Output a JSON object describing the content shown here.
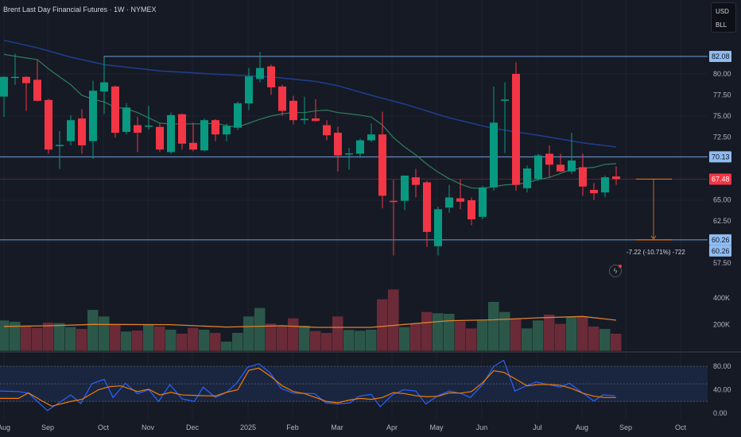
{
  "header": {
    "title": "Brent Last Day Financial Futures · 1W · NYMEX",
    "currency": "USD",
    "unit": "BLL"
  },
  "measure_label": "-7.22 (-10.71%) -722",
  "colors": {
    "up": "#089981",
    "down": "#f23645",
    "vol_up": "#2b5749",
    "vol_down": "#6b2a38",
    "ma_fast": "#2f7d5c",
    "ma_slow": "#1f3f8f",
    "vol_ma": "#e0822b",
    "rsi": "#2962ff",
    "rsi_ma": "#f57c00",
    "level": "#6f9fd8",
    "tag_blue": "#8fbcf0",
    "tag_red": "#f23645"
  },
  "chart_data": [
    {
      "type": "candlestick",
      "title": "Brent Last Day Financial Futures · 1W · NYMEX",
      "ylim": [
        57.5,
        82.5
      ],
      "price_ticks": [
        "80.00",
        "77.50",
        "75.00",
        "72.50",
        "65.00",
        "62.50",
        "57.50"
      ],
      "price_tick_values": [
        80,
        77.5,
        75,
        72.5,
        65,
        62.5,
        57.5
      ],
      "ohlc": [
        [
          77.3,
          79.7,
          74.9,
          79.65
        ],
        [
          79.55,
          82.4,
          78.7,
          79.65
        ],
        [
          79.65,
          79.7,
          75.6,
          78.9
        ],
        [
          79.3,
          81.6,
          76.7,
          76.8
        ],
        [
          76.9,
          77.0,
          70.5,
          71.0
        ],
        [
          71.45,
          73.2,
          68.7,
          71.55
        ],
        [
          72.0,
          75.1,
          71.5,
          74.5
        ],
        [
          74.7,
          75.8,
          70.5,
          71.5
        ],
        [
          72.0,
          79.2,
          69.9,
          78.0
        ],
        [
          77.9,
          81.9,
          75.2,
          79.0
        ],
        [
          78.5,
          78.6,
          72.4,
          73.0
        ],
        [
          73.1,
          76.5,
          72.8,
          76.0
        ],
        [
          73.9,
          74.9,
          70.7,
          73.0
        ],
        [
          73.75,
          76.2,
          73.4,
          73.85
        ],
        [
          73.7,
          74.1,
          70.7,
          71.0
        ],
        [
          70.7,
          75.4,
          70.5,
          75.1
        ],
        [
          75.2,
          75.3,
          71.0,
          71.7
        ],
        [
          71.8,
          74.2,
          70.8,
          71.0
        ],
        [
          70.9,
          74.7,
          70.8,
          74.5
        ],
        [
          74.5,
          74.6,
          72.0,
          72.8
        ],
        [
          72.8,
          74.1,
          72.0,
          73.8
        ],
        [
          73.6,
          76.7,
          73.3,
          76.5
        ],
        [
          76.5,
          80.7,
          75.7,
          79.7
        ],
        [
          79.4,
          82.6,
          79.0,
          80.7
        ],
        [
          80.9,
          81.1,
          77.5,
          78.4
        ],
        [
          78.5,
          78.7,
          75.0,
          75.6
        ],
        [
          76.8,
          77.4,
          74.0,
          74.5
        ],
        [
          74.5,
          77.3,
          74.0,
          74.65
        ],
        [
          74.7,
          77.0,
          74.3,
          74.4
        ],
        [
          73.9,
          74.5,
          72.1,
          72.7
        ],
        [
          73.0,
          73.7,
          68.4,
          70.3
        ],
        [
          70.45,
          71.2,
          68.6,
          70.55
        ],
        [
          70.5,
          72.3,
          70.0,
          72.1
        ],
        [
          72.1,
          74.1,
          71.9,
          72.8
        ],
        [
          72.8,
          75.5,
          64.0,
          65.5
        ],
        [
          64.9,
          67.4,
          58.4,
          64.8
        ],
        [
          64.9,
          67.9,
          63.8,
          67.9
        ],
        [
          67.7,
          68.7,
          65.3,
          66.8
        ],
        [
          67.1,
          67.3,
          59.4,
          61.2
        ],
        [
          59.5,
          64.2,
          58.4,
          63.9
        ],
        [
          64.1,
          66.8,
          63.5,
          65.3
        ],
        [
          65.2,
          67.5,
          63.9,
          64.8
        ],
        [
          64.97,
          65.3,
          62.0,
          62.7
        ],
        [
          63.0,
          66.7,
          62.7,
          66.5
        ],
        [
          66.5,
          78.5,
          66.1,
          74.2
        ],
        [
          76.8,
          79.0,
          70.6,
          76.95
        ],
        [
          80.0,
          81.4,
          66.1,
          66.8
        ],
        [
          66.4,
          69.1,
          65.9,
          68.75
        ],
        [
          67.5,
          70.5,
          67.3,
          70.3
        ],
        [
          70.5,
          71.5,
          67.7,
          69.2
        ],
        [
          69.2,
          70.5,
          68.3,
          68.4
        ],
        [
          68.4,
          73.0,
          68.1,
          69.7
        ],
        [
          68.9,
          70.5,
          65.5,
          66.6
        ],
        [
          66.2,
          67.0,
          65.0,
          65.8
        ],
        [
          65.9,
          67.9,
          65.3,
          67.7
        ],
        [
          67.8,
          69.0,
          66.8,
          67.48
        ]
      ],
      "ma_fast": [
        82.33,
        82.1,
        81.9,
        81.7,
        80.6,
        79.65,
        78.71,
        77.45,
        76.98,
        76.66,
        76.03,
        75.87,
        75.4,
        74.77,
        74.14,
        74.05,
        74.05,
        74.05,
        74.05,
        74.14,
        73.83,
        73.67,
        74.14,
        74.61,
        74.99,
        75.25,
        75.4,
        75.4,
        75.6,
        75.7,
        75.4,
        75.25,
        75.09,
        74.87,
        73.92,
        72.41,
        71.3,
        70.36,
        69.25,
        68.31,
        67.53,
        66.9,
        66.43,
        66.36,
        66.58,
        66.8,
        66.86,
        67.05,
        67.43,
        67.68,
        68.16,
        68.63,
        68.78,
        68.88,
        69.23,
        69.32
      ],
      "ma_slow_points": [
        [
          0,
          84.0
        ],
        [
          3,
          83.1
        ],
        [
          6,
          82.0
        ],
        [
          9,
          81.1
        ],
        [
          14,
          80.35
        ],
        [
          19,
          79.97
        ],
        [
          24,
          79.65
        ],
        [
          28,
          79.1
        ],
        [
          30,
          78.6
        ],
        [
          33,
          77.45
        ],
        [
          36,
          76.4
        ],
        [
          40,
          74.77
        ],
        [
          44,
          73.5
        ],
        [
          48,
          72.7
        ],
        [
          52,
          71.8
        ],
        [
          55,
          71.3
        ]
      ],
      "levels": [
        {
          "value": 82.08,
          "label": "82.08",
          "from_index": 9
        },
        {
          "value": 70.13,
          "label": "70.13",
          "from_index": -1
        },
        {
          "value": 60.26,
          "label": "60.26",
          "from_index": -1
        }
      ],
      "last_price": {
        "value": 67.48,
        "label": "67.48"
      },
      "measure": {
        "from": 67.48,
        "to": 60.26,
        "label": "60.26"
      }
    },
    {
      "type": "bar",
      "title": "Volume",
      "ylim": [
        0,
        480000
      ],
      "ticks": [
        "400K",
        "200K"
      ],
      "tick_values": [
        400000,
        200000
      ],
      "values": [
        230000,
        220000,
        190000,
        174000,
        214000,
        210000,
        180000,
        166000,
        310000,
        260000,
        200000,
        146000,
        154000,
        200000,
        184000,
        160000,
        130000,
        174000,
        160000,
        136000,
        70000,
        136000,
        260000,
        324000,
        206000,
        194000,
        246000,
        190000,
        150000,
        136000,
        260000,
        158000,
        152000,
        160000,
        390000,
        464000,
        180000,
        206000,
        294000,
        284000,
        280000,
        224000,
        170000,
        230000,
        370000,
        294000,
        246000,
        170000,
        230000,
        274000,
        204000,
        254000,
        256000,
        184000,
        166000,
        130000
      ],
      "ma_points": [
        [
          0,
          185000
        ],
        [
          4,
          190000
        ],
        [
          8,
          200000
        ],
        [
          15,
          198000
        ],
        [
          20,
          180000
        ],
        [
          25,
          190000
        ],
        [
          28,
          178000
        ],
        [
          33,
          178000
        ],
        [
          36,
          200000
        ],
        [
          40,
          228000
        ],
        [
          44,
          235000
        ],
        [
          48,
          250000
        ],
        [
          52,
          260000
        ],
        [
          55,
          232000
        ]
      ]
    },
    {
      "type": "line",
      "title": "RSI",
      "ylim": [
        -5,
        100
      ],
      "ticks": [
        "80.00",
        "40.00",
        "0.00"
      ],
      "tick_values": [
        80,
        40,
        0
      ],
      "band": [
        20,
        80
      ],
      "rsi_points": [
        [
          -0.4,
          37.8
        ],
        [
          1.3,
          36.9
        ],
        [
          2.2,
          34.2
        ],
        [
          3.9,
          4.4
        ],
        [
          6.0,
          31.1
        ],
        [
          6.9,
          16.4
        ],
        [
          7.9,
          50.2
        ],
        [
          9.0,
          57.8
        ],
        [
          9.8,
          26.7
        ],
        [
          10.9,
          51.1
        ],
        [
          12.0,
          33.3
        ],
        [
          13.0,
          40
        ],
        [
          13.9,
          20
        ],
        [
          14.9,
          48.9
        ],
        [
          16.0,
          24.4
        ],
        [
          17.1,
          20
        ],
        [
          17.9,
          44.4
        ],
        [
          19.0,
          26.7
        ],
        [
          20.0,
          35.6
        ],
        [
          20.9,
          51.1
        ],
        [
          21.9,
          78.7
        ],
        [
          22.9,
          84.4
        ],
        [
          23.9,
          68.9
        ],
        [
          24.9,
          42.2
        ],
        [
          26.0,
          34.2
        ],
        [
          27.9,
          33.3
        ],
        [
          28.9,
          17.8
        ],
        [
          30.0,
          15.6
        ],
        [
          31.1,
          17.8
        ],
        [
          31.9,
          28.9
        ],
        [
          33.0,
          32
        ],
        [
          33.8,
          11.1
        ],
        [
          34.9,
          31.1
        ],
        [
          35.9,
          40
        ],
        [
          37.0,
          37.8
        ],
        [
          37.9,
          15.6
        ],
        [
          38.9,
          28.9
        ],
        [
          40.0,
          37.8
        ],
        [
          41.1,
          33.3
        ],
        [
          41.9,
          26.7
        ],
        [
          43.0,
          48.9
        ],
        [
          44.0,
          80
        ],
        [
          44.9,
          90.2
        ],
        [
          45.9,
          37.8
        ],
        [
          46.8,
          45.8
        ],
        [
          47.8,
          53.3
        ],
        [
          48.9,
          48.9
        ],
        [
          50.0,
          44.4
        ],
        [
          50.8,
          51.1
        ],
        [
          51.9,
          35.6
        ],
        [
          53.0,
          20.9
        ],
        [
          53.8,
          31.1
        ],
        [
          54.9,
          29.8
        ]
      ],
      "ma_points": [
        [
          -0.4,
          25.3
        ],
        [
          1.3,
          25.3
        ],
        [
          2.2,
          34.7
        ],
        [
          3.5,
          20
        ],
        [
          4.3,
          12
        ],
        [
          6,
          20
        ],
        [
          7,
          23.6
        ],
        [
          8.5,
          40
        ],
        [
          9.5,
          45.3
        ],
        [
          10.5,
          46.7
        ],
        [
          12,
          36.9
        ],
        [
          13,
          40.9
        ],
        [
          14,
          31.1
        ],
        [
          15,
          35.6
        ],
        [
          16,
          31.1
        ],
        [
          18,
          29.8
        ],
        [
          19,
          29.3
        ],
        [
          20,
          35.6
        ],
        [
          21,
          40
        ],
        [
          22,
          73.3
        ],
        [
          22.9,
          76.9
        ],
        [
          24,
          62.2
        ],
        [
          25,
          46.7
        ],
        [
          26,
          36.9
        ],
        [
          27,
          33.3
        ],
        [
          28,
          26.7
        ],
        [
          29,
          20
        ],
        [
          30,
          17.8
        ],
        [
          31,
          22.2
        ],
        [
          32,
          25.3
        ],
        [
          33,
          23.6
        ],
        [
          34,
          26.7
        ],
        [
          35,
          35.1
        ],
        [
          36,
          33.3
        ],
        [
          37,
          29.8
        ],
        [
          38,
          28
        ],
        [
          39,
          28.9
        ],
        [
          40,
          34.7
        ],
        [
          41,
          34.2
        ],
        [
          42,
          36.9
        ],
        [
          43,
          52
        ],
        [
          44,
          72.4
        ],
        [
          44.9,
          69.8
        ],
        [
          46,
          57.8
        ],
        [
          47,
          46.7
        ],
        [
          48,
          48.9
        ],
        [
          49,
          48.9
        ],
        [
          50,
          47.6
        ],
        [
          51,
          42.2
        ],
        [
          52,
          34.2
        ],
        [
          53,
          28.9
        ],
        [
          54,
          26.7
        ],
        [
          55,
          26.7
        ]
      ]
    }
  ],
  "time_axis": [
    "Aug",
    "Sep",
    "Oct",
    "Nov",
    "Dec",
    "2025",
    "Feb",
    "Mar",
    "Apr",
    "May",
    "Jun",
    "Jul",
    "Aug",
    "Sep",
    "Oct"
  ]
}
